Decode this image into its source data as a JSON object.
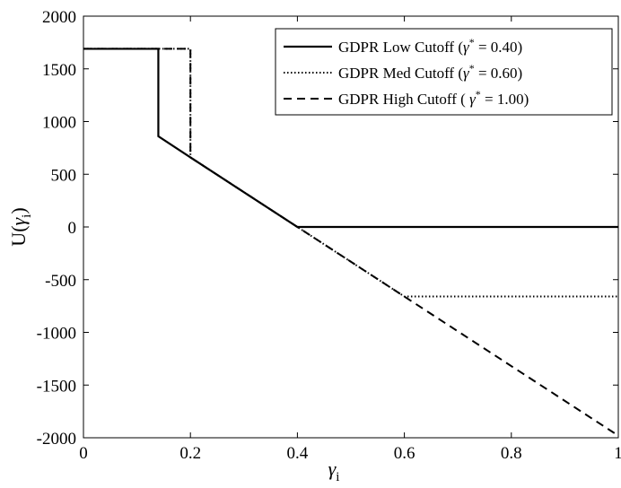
{
  "chart_data": {
    "type": "line",
    "title": "",
    "xlabel": "γ_i",
    "ylabel": "U(γ_i)",
    "xlim": [
      0,
      1
    ],
    "ylim": [
      -2000,
      2000
    ],
    "x_ticks": [
      0,
      0.2,
      0.4,
      0.6,
      0.8,
      1
    ],
    "x_tick_labels": [
      "0",
      "0.2",
      "0.4",
      "0.6",
      "0.8",
      "1"
    ],
    "y_ticks": [
      2000,
      1500,
      1000,
      500,
      0,
      -500,
      -1000,
      -1500,
      -2000
    ],
    "y_tick_labels": [
      "2000",
      "1500",
      "1000",
      "500",
      "0",
      "-500",
      "-1000",
      "-1500",
      "-2000"
    ],
    "grid": false,
    "legend_position": "top-right",
    "series": [
      {
        "name": "GDPR Low Cutoff (γ* = 0.40)",
        "style": "solid",
        "color": "#000000",
        "points": [
          [
            0,
            1690
          ],
          [
            0.14,
            1690
          ],
          [
            0.14,
            860
          ],
          [
            0.2,
            660
          ],
          [
            0.4,
            0
          ],
          [
            1.0,
            0
          ]
        ]
      },
      {
        "name": "GDPR Med Cutoff (γ* = 0.60)",
        "style": "dotted",
        "color": "#000000",
        "points": [
          [
            0,
            1690
          ],
          [
            0.2,
            1690
          ],
          [
            0.2,
            660
          ],
          [
            0.4,
            0
          ],
          [
            0.6,
            -660
          ],
          [
            1.0,
            -660
          ]
        ]
      },
      {
        "name": "GDPR High Cutoff ( γ* = 1.00)",
        "style": "dashed",
        "color": "#000000",
        "points": [
          [
            0,
            1690
          ],
          [
            0.2,
            1690
          ],
          [
            0.2,
            660
          ],
          [
            0.4,
            0
          ],
          [
            1.0,
            -1980
          ]
        ]
      }
    ]
  }
}
